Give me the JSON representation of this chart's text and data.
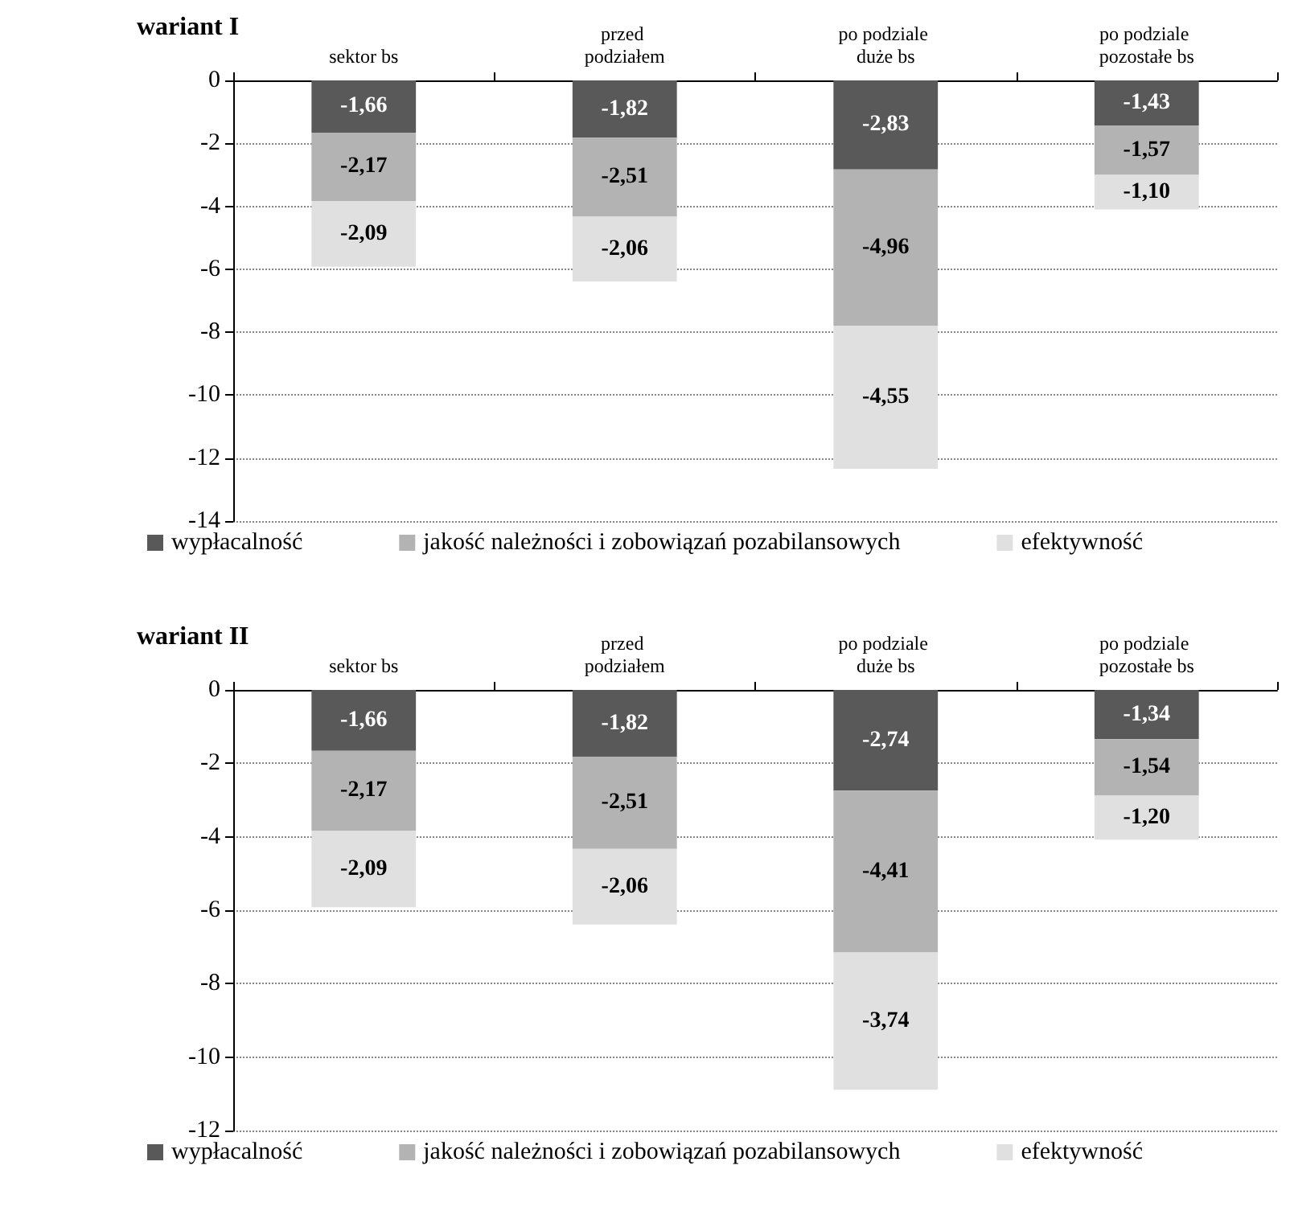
{
  "chart_data": [
    {
      "type": "bar",
      "title": "wariant I",
      "categories": [
        "sektor bs",
        "przed podziałem",
        "po podziale duże bs",
        "po podziale pozostałe bs"
      ],
      "stacked": true,
      "ylim": [
        -14,
        0
      ],
      "yticks": [
        -14,
        -12,
        -10,
        -8,
        -6,
        -4,
        -2,
        0
      ],
      "grid": "y",
      "legend": "bottom",
      "series": [
        {
          "name": "wypłacalność",
          "color": "#595959",
          "values": [
            -1.66,
            -1.82,
            -2.83,
            -1.43
          ],
          "value_labels": [
            "-1,66",
            "-1,82",
            "-2,83",
            "-1,43"
          ]
        },
        {
          "name": "jakość należności i zobowiązań pozabilansowych",
          "color": "#b3b3b3",
          "values": [
            -2.17,
            -2.51,
            -4.96,
            -1.57
          ],
          "value_labels": [
            "-2,17",
            "-2,51",
            "-4,96",
            "-1,57"
          ]
        },
        {
          "name": "efektywność",
          "color": "#e0e0e0",
          "values": [
            -2.09,
            -2.06,
            -4.55,
            -1.1
          ],
          "value_labels": [
            "-2,09",
            "-2,06",
            "-4,55",
            "-1,10"
          ]
        }
      ]
    },
    {
      "type": "bar",
      "title": "wariant II",
      "categories": [
        "sektor bs",
        "przed podziałem",
        "po podziale duże bs",
        "po podziale pozostałe bs"
      ],
      "stacked": true,
      "ylim": [
        -12,
        0
      ],
      "yticks": [
        -12,
        -10,
        -8,
        -6,
        -4,
        -2,
        0
      ],
      "grid": "y",
      "legend": "bottom",
      "series": [
        {
          "name": "wypłacalność",
          "color": "#595959",
          "values": [
            -1.66,
            -1.82,
            -2.74,
            -1.34
          ],
          "value_labels": [
            "-1,66",
            "-1,82",
            "-2,74",
            "-1,34"
          ]
        },
        {
          "name": "jakość należności i zobowiązań pozabilansowych",
          "color": "#b3b3b3",
          "values": [
            -2.17,
            -2.51,
            -4.41,
            -1.54
          ],
          "value_labels": [
            "-2,17",
            "-2,51",
            "-4,41",
            "-1,54"
          ]
        },
        {
          "name": "efektywność",
          "color": "#e0e0e0",
          "values": [
            -2.09,
            -2.06,
            -3.74,
            -1.2
          ],
          "value_labels": [
            "-2,09",
            "-2,06",
            "-3,74",
            "-1,20"
          ]
        }
      ]
    }
  ]
}
